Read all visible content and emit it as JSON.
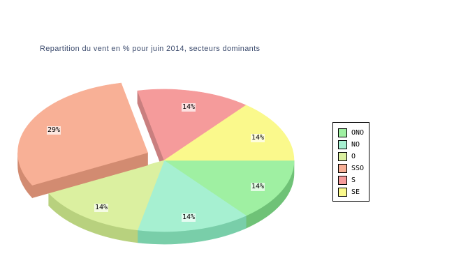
{
  "colors": {
    "background": "#FFFFFF",
    "title_text": "#3D4C6E",
    "label_bg": "rgba(255,255,255,0.7)",
    "legend_border": "#000000"
  },
  "chart_data": {
    "type": "pie",
    "style": "3d-exploded",
    "title": "Repartition du vent en % pour juin 2014, secteurs dominants",
    "legend_position": "right",
    "exploded_slice": "SSO",
    "slices": [
      {
        "label": "ONO",
        "value": 14,
        "pct_label": "14%",
        "color": "#9FF0A2",
        "side_color": "#6FC277",
        "exploded": false
      },
      {
        "label": "NO",
        "value": 14,
        "pct_label": "14%",
        "color": "#A6F0D1",
        "side_color": "#79CEA9",
        "exploded": false
      },
      {
        "label": "O",
        "value": 14,
        "pct_label": "14%",
        "color": "#DBF0A0",
        "side_color": "#B8D17E",
        "exploded": false
      },
      {
        "label": "SSO",
        "value": 29,
        "pct_label": "29%",
        "color": "#F8B096",
        "side_color": "#D28B71",
        "exploded": true
      },
      {
        "label": "S",
        "value": 14,
        "pct_label": "14%",
        "color": "#F59B9B",
        "side_color": "#C97F7F",
        "exploded": false
      },
      {
        "label": "SE",
        "value": 14,
        "pct_label": "14%",
        "color": "#FAF98C",
        "side_color": "#D8D268",
        "exploded": false
      }
    ]
  },
  "legend": {
    "items": [
      "ONO",
      "NO",
      "O",
      "SSO",
      "S",
      "SE"
    ]
  }
}
